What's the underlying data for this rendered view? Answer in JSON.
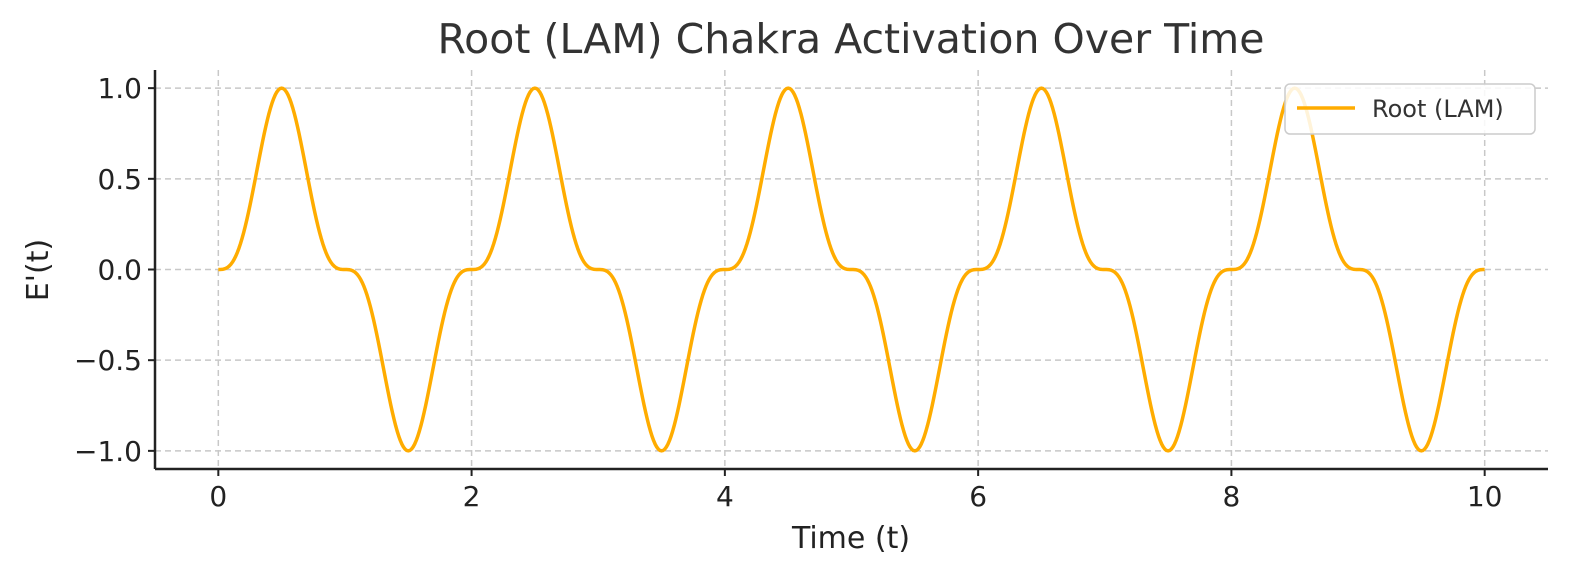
{
  "chart_data": {
    "type": "line",
    "title": "Root (LAM) Chakra Activation Over Time",
    "xlabel": "Time (t)",
    "ylabel": "E'(t)",
    "xlim": [
      -0.5,
      10.5
    ],
    "ylim": [
      -1.1,
      1.1
    ],
    "x_ticks": [
      0,
      2,
      4,
      6,
      8,
      10
    ],
    "x_tick_labels": [
      "0",
      "2",
      "4",
      "6",
      "8",
      "10"
    ],
    "y_ticks": [
      -1.0,
      -0.5,
      0.0,
      0.5,
      1.0
    ],
    "y_tick_labels": [
      "−1.0",
      "−0.5",
      "0.0",
      "0.5",
      "1.0"
    ],
    "grid": true,
    "legend_position": "top-right",
    "series": [
      {
        "name": "Root (LAM)",
        "color": "#ffac00",
        "x_range": [
          0,
          10
        ],
        "x": [
          0,
          0.25,
          0.5,
          0.75,
          1.0,
          1.25,
          1.5,
          1.75,
          2.0,
          2.25,
          2.5,
          2.75,
          3.0,
          3.25,
          3.5,
          3.75,
          4.0,
          4.25,
          4.5,
          4.75,
          5.0,
          5.25,
          5.5,
          5.75,
          6.0,
          6.25,
          6.5,
          6.75,
          7.0,
          7.25,
          7.5,
          7.75,
          8.0,
          8.25,
          8.5,
          8.75,
          9.0,
          9.25,
          9.5,
          9.75,
          10.0
        ],
        "y": [
          0.0,
          0.35,
          1.0,
          0.35,
          0.0,
          -0.35,
          -1.0,
          -0.35,
          0.0,
          0.35,
          1.0,
          0.35,
          0.0,
          -0.35,
          -1.0,
          -0.35,
          0.0,
          0.35,
          1.0,
          0.35,
          0.0,
          -0.35,
          -1.0,
          -0.35,
          0.0,
          0.35,
          1.0,
          0.35,
          0.0,
          -0.35,
          -1.0,
          -0.35,
          0.0,
          0.35,
          1.0,
          0.35,
          0.0,
          -0.35,
          -1.0,
          -0.35,
          0.0
        ]
      }
    ]
  }
}
